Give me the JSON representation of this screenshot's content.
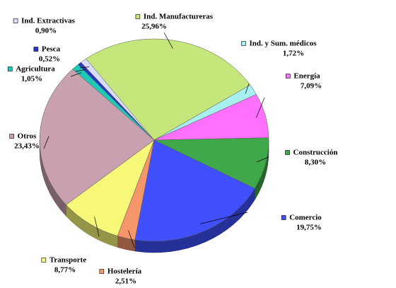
{
  "chart_data": {
    "type": "pie",
    "categories": [
      "Ind. Manufactureras",
      "Ind. y Sum. médicos",
      "Energía",
      "Construcción",
      "Comercio",
      "Hostelería",
      "Transporte",
      "Otros",
      "Agricultura",
      "Pesca",
      "Ind. Extractivas"
    ],
    "values": [
      25.96,
      1.72,
      7.09,
      8.3,
      19.75,
      2.51,
      8.77,
      23.43,
      1.05,
      0.52,
      0.9
    ],
    "value_labels": [
      "25,96%",
      "1,72%",
      "7,09%",
      "8,30%",
      "19,75%",
      "2,51%",
      "8,77%",
      "23,43%",
      "1,05%",
      "0,52%",
      "0,90%"
    ],
    "colors": [
      "#c4e67a",
      "#a8f0f0",
      "#ff70ff",
      "#3ea84a",
      "#4050ff",
      "#f4956a",
      "#f8f878",
      "#c8a0b0",
      "#20c8b8",
      "#2838c0",
      "#dcdcff"
    ]
  }
}
